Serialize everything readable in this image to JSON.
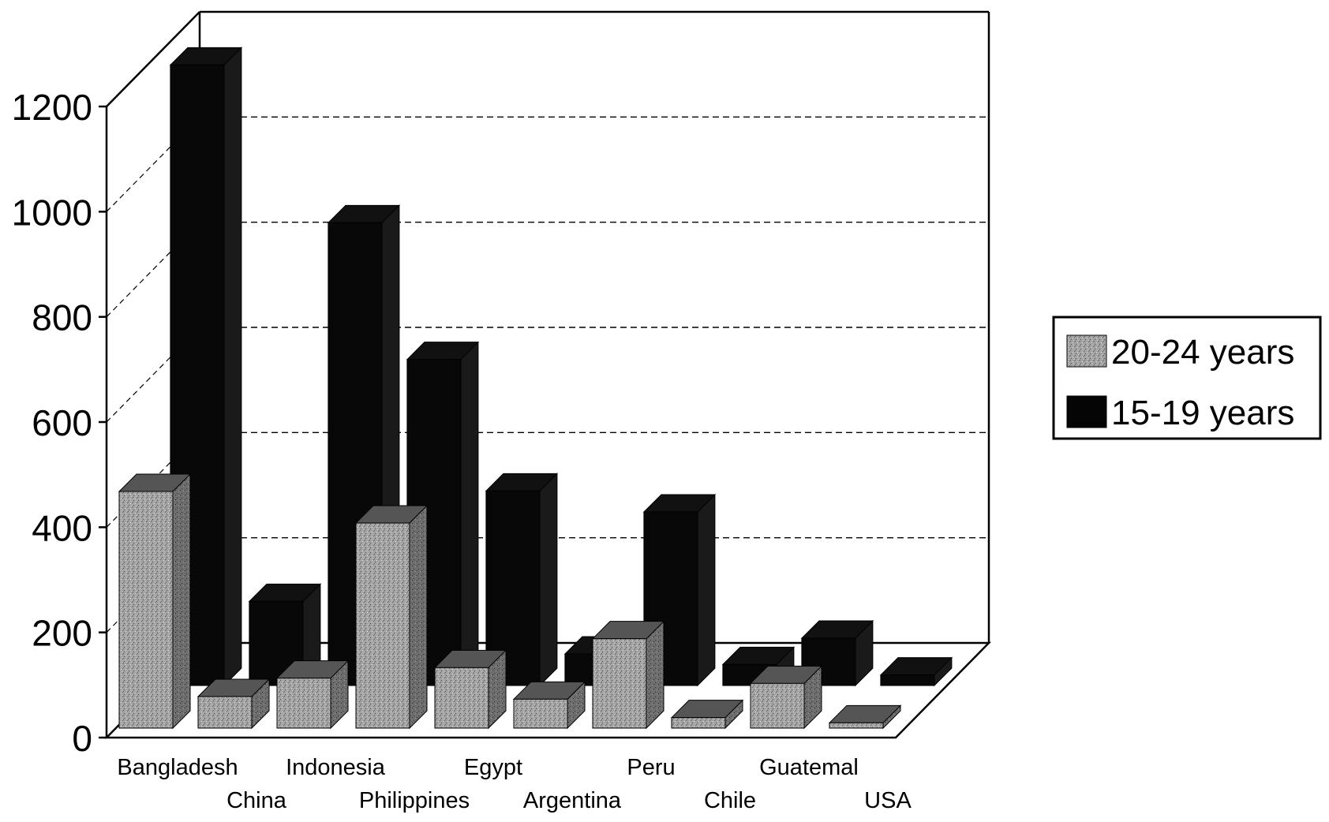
{
  "chart_data": {
    "type": "bar",
    "title": "",
    "xlabel": "",
    "ylabel": "",
    "ylim": [
      0,
      1200
    ],
    "yticks": [
      0,
      200,
      400,
      600,
      800,
      1000,
      1200
    ],
    "grid": true,
    "legend_position": "right",
    "categories": [
      "Bangladesh",
      "China",
      "Indonesia",
      "Philippines",
      "Egypt",
      "Argentina",
      "Peru",
      "Chile",
      "Guatemal",
      "USA"
    ],
    "series": [
      {
        "name": "20-24 years",
        "color": "#9a9a9a",
        "values": [
          450,
          60,
          95,
          390,
          115,
          55,
          170,
          20,
          85,
          10
        ]
      },
      {
        "name": "15-19 years",
        "color": "#0a0a0a",
        "values": [
          1180,
          160,
          880,
          620,
          370,
          60,
          330,
          40,
          90,
          20
        ]
      }
    ]
  }
}
